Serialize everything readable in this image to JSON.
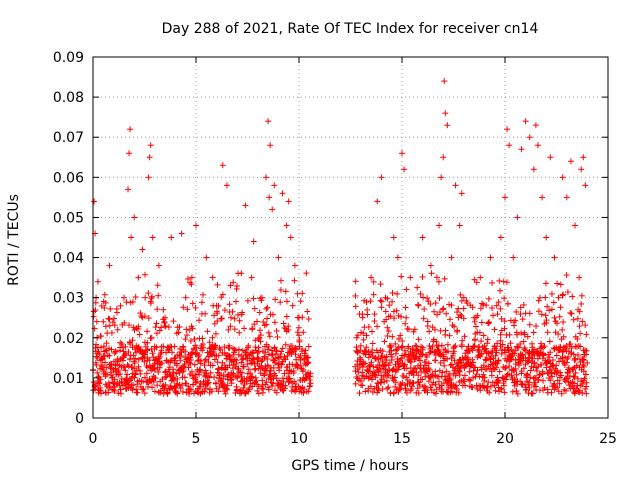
{
  "chart_data": {
    "type": "scatter",
    "title": "Day 288 of 2021, Rate Of TEC Index for receiver cn14",
    "xlabel": "GPS time / hours",
    "ylabel": "ROTI / TECUs",
    "xlim": [
      0,
      25
    ],
    "ylim": [
      0,
      0.09
    ],
    "x_ticks": [
      0,
      5,
      10,
      15,
      20,
      25
    ],
    "x_tick_labels": [
      "0",
      "5",
      "10",
      "15",
      "20",
      "25"
    ],
    "y_ticks": [
      0,
      0.01,
      0.02,
      0.03,
      0.04,
      0.05,
      0.06,
      0.07,
      0.08,
      0.09
    ],
    "y_tick_labels": [
      "0",
      "0.01",
      "0.02",
      "0.03",
      "0.04",
      "0.05",
      "0.06",
      "0.07",
      "0.08",
      "0.09"
    ],
    "grid": true,
    "marker": "plus",
    "color": "#ff0000",
    "data_gap_hours": [
      10.5,
      12.7
    ],
    "series": [
      {
        "name": "ROTI cn14",
        "x": [
          0.0,
          0.05,
          0.1,
          0.1,
          0.15,
          0.2,
          0.3,
          0.4,
          0.5,
          0.6,
          0.8,
          1.0,
          1.2,
          1.4,
          1.5,
          1.7,
          1.75,
          1.8,
          1.85,
          2.0,
          2.1,
          2.2,
          2.4,
          2.6,
          2.7,
          2.75,
          2.8,
          2.85,
          2.9,
          3.0,
          3.2,
          3.5,
          3.8,
          4.0,
          4.3,
          4.5,
          4.8,
          5.0,
          5.2,
          5.5,
          5.8,
          6.0,
          6.3,
          6.5,
          6.6,
          6.7,
          7.0,
          7.4,
          7.7,
          7.8,
          8.0,
          8.2,
          8.4,
          8.5,
          8.55,
          8.6,
          8.7,
          8.8,
          9.0,
          9.2,
          9.4,
          9.5,
          9.6,
          9.8,
          10.0,
          10.2,
          10.4,
          12.8,
          13.0,
          13.3,
          13.5,
          13.8,
          14.0,
          14.2,
          14.4,
          14.6,
          14.8,
          15.0,
          15.1,
          15.2,
          15.4,
          15.6,
          15.8,
          16.0,
          16.2,
          16.4,
          16.6,
          16.8,
          16.9,
          17.0,
          17.05,
          17.1,
          17.2,
          17.4,
          17.6,
          17.8,
          17.9,
          18.0,
          18.2,
          18.5,
          18.8,
          19.0,
          19.3,
          19.6,
          19.8,
          20.0,
          20.1,
          20.2,
          20.4,
          20.6,
          20.8,
          21.0,
          21.2,
          21.4,
          21.5,
          21.6,
          21.8,
          22.0,
          22.2,
          22.4,
          22.6,
          22.8,
          23.0,
          23.2,
          23.4,
          23.6,
          23.7,
          23.8,
          23.9
        ],
        "y": [
          0.012,
          0.054,
          0.046,
          0.008,
          0.03,
          0.02,
          0.01,
          0.015,
          0.024,
          0.011,
          0.038,
          0.012,
          0.022,
          0.009,
          0.03,
          0.057,
          0.066,
          0.072,
          0.045,
          0.05,
          0.018,
          0.035,
          0.042,
          0.013,
          0.06,
          0.065,
          0.068,
          0.02,
          0.045,
          0.01,
          0.038,
          0.025,
          0.045,
          0.015,
          0.046,
          0.03,
          0.035,
          0.048,
          0.012,
          0.04,
          0.02,
          0.028,
          0.063,
          0.058,
          0.018,
          0.025,
          0.01,
          0.053,
          0.035,
          0.044,
          0.015,
          0.03,
          0.06,
          0.074,
          0.055,
          0.068,
          0.052,
          0.058,
          0.04,
          0.056,
          0.048,
          0.054,
          0.045,
          0.038,
          0.025,
          0.012,
          0.015,
          0.02,
          0.018,
          0.012,
          0.035,
          0.054,
          0.06,
          0.03,
          0.018,
          0.045,
          0.04,
          0.066,
          0.062,
          0.025,
          0.035,
          0.015,
          0.028,
          0.045,
          0.012,
          0.038,
          0.022,
          0.048,
          0.06,
          0.065,
          0.084,
          0.076,
          0.073,
          0.04,
          0.058,
          0.048,
          0.056,
          0.03,
          0.015,
          0.025,
          0.035,
          0.018,
          0.04,
          0.028,
          0.045,
          0.055,
          0.072,
          0.068,
          0.04,
          0.05,
          0.067,
          0.074,
          0.07,
          0.062,
          0.073,
          0.068,
          0.055,
          0.045,
          0.065,
          0.04,
          0.03,
          0.06,
          0.055,
          0.064,
          0.048,
          0.035,
          0.062,
          0.065,
          0.058
        ]
      }
    ]
  }
}
